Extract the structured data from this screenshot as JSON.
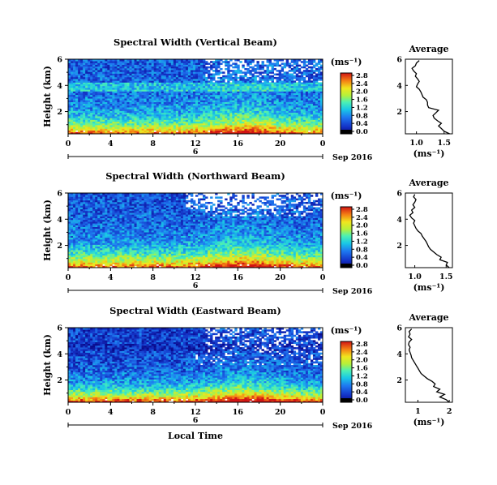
{
  "chart_data": [
    {
      "type": "heatmap",
      "title": "Spectral Width (Vertical Beam)",
      "ylabel": "Height (km)",
      "y_ticks": [
        "2",
        "4",
        "6"
      ],
      "ylim": [
        0.3,
        6.0
      ],
      "x_ticks": [
        "0",
        "4",
        "8",
        "12",
        "16",
        "20",
        "0"
      ],
      "xlim": [
        0,
        24
      ],
      "date_day": "6",
      "date_month": "Sep 2016",
      "colorbar": {
        "unit": "(ms⁻¹)",
        "ticks": [
          "0.0",
          "0.4",
          "0.8",
          "1.2",
          "1.6",
          "2.0",
          "2.4",
          "2.8"
        ],
        "range": [
          0,
          2.8
        ]
      },
      "average": {
        "title": "Average",
        "xlabel": "(ms⁻¹)",
        "x_ticks": [
          "1.0",
          "1.5"
        ],
        "x_tick_values": [
          1.0,
          1.5
        ],
        "xlim": [
          0.8,
          1.65
        ],
        "y_ticks": [
          "2",
          "4",
          "6"
        ],
        "ylim": [
          0.3,
          6.0
        ],
        "profile": [
          [
            0.3,
            1.6
          ],
          [
            0.5,
            1.5
          ],
          [
            0.7,
            1.45
          ],
          [
            0.9,
            1.4
          ],
          [
            1.1,
            1.45
          ],
          [
            1.3,
            1.38
          ],
          [
            1.5,
            1.32
          ],
          [
            1.7,
            1.3
          ],
          [
            1.9,
            1.35
          ],
          [
            2.1,
            1.4
          ],
          [
            2.3,
            1.22
          ],
          [
            2.5,
            1.2
          ],
          [
            2.7,
            1.2
          ],
          [
            2.9,
            1.18
          ],
          [
            3.1,
            1.12
          ],
          [
            3.3,
            1.1
          ],
          [
            3.5,
            1.08
          ],
          [
            3.7,
            1.05
          ],
          [
            3.9,
            1.0
          ],
          [
            4.1,
            1.02
          ],
          [
            4.3,
            1.05
          ],
          [
            4.5,
            1.02
          ],
          [
            4.7,
            0.98
          ],
          [
            4.9,
            1.0
          ],
          [
            5.1,
            0.95
          ],
          [
            5.3,
            0.92
          ],
          [
            5.5,
            0.98
          ],
          [
            5.7,
            1.0
          ],
          [
            5.9,
            1.05
          ]
        ]
      }
    },
    {
      "type": "heatmap",
      "title": "Spectral Width (Northward Beam)",
      "ylabel": "Height (km)",
      "y_ticks": [
        "2",
        "4",
        "6"
      ],
      "ylim": [
        0.3,
        6.0
      ],
      "x_ticks": [
        "0",
        "4",
        "8",
        "12",
        "16",
        "20",
        "0"
      ],
      "xlim": [
        0,
        24
      ],
      "date_day": "6",
      "date_month": "Sep 2016",
      "colorbar": {
        "unit": "(ms⁻¹)",
        "ticks": [
          "0.0",
          "0.4",
          "0.8",
          "1.2",
          "1.6",
          "2.0",
          "2.4",
          "2.8"
        ],
        "range": [
          0,
          2.8
        ]
      },
      "average": {
        "title": "Average",
        "xlabel": "(ms⁻¹)",
        "x_ticks": [
          "1.0",
          "1.5"
        ],
        "x_tick_values": [
          1.0,
          1.5
        ],
        "xlim": [
          0.85,
          1.6
        ],
        "y_ticks": [
          "2",
          "4",
          "6"
        ],
        "ylim": [
          0.3,
          6.0
        ],
        "profile": [
          [
            0.3,
            1.55
          ],
          [
            0.5,
            1.5
          ],
          [
            0.7,
            1.52
          ],
          [
            0.9,
            1.4
          ],
          [
            1.1,
            1.42
          ],
          [
            1.3,
            1.35
          ],
          [
            1.5,
            1.3
          ],
          [
            1.7,
            1.25
          ],
          [
            1.9,
            1.22
          ],
          [
            2.1,
            1.2
          ],
          [
            2.3,
            1.18
          ],
          [
            2.5,
            1.15
          ],
          [
            2.7,
            1.12
          ],
          [
            2.9,
            1.1
          ],
          [
            3.1,
            1.05
          ],
          [
            3.3,
            1.02
          ],
          [
            3.5,
            1.0
          ],
          [
            3.7,
            0.98
          ],
          [
            3.9,
            1.0
          ],
          [
            4.1,
            0.95
          ],
          [
            4.3,
            0.92
          ],
          [
            4.5,
            0.97
          ],
          [
            4.7,
            0.95
          ],
          [
            4.9,
            1.0
          ],
          [
            5.1,
            0.97
          ],
          [
            5.3,
            1.0
          ],
          [
            5.5,
            1.02
          ],
          [
            5.7,
            0.98
          ],
          [
            5.9,
            1.0
          ]
        ]
      }
    },
    {
      "type": "heatmap",
      "title": "Spectral Width (Eastward Beam)",
      "ylabel": "Height (km)",
      "y_ticks": [
        "2",
        "4",
        "6"
      ],
      "ylim": [
        0.3,
        6.0
      ],
      "x_ticks": [
        "0",
        "4",
        "8",
        "12",
        "16",
        "20",
        "0"
      ],
      "xlim": [
        0,
        24
      ],
      "date_day": "6",
      "date_month": "Sep 2016",
      "xlabel": "Local Time",
      "colorbar": {
        "unit": "(ms⁻¹)",
        "ticks": [
          "0.0",
          "0.4",
          "0.8",
          "1.2",
          "1.6",
          "2.0",
          "2.4",
          "2.8"
        ],
        "range": [
          0,
          2.8
        ]
      },
      "average": {
        "title": "Average",
        "xlabel": "(ms⁻¹)",
        "x_ticks": [
          "1",
          "2"
        ],
        "x_tick_values": [
          1.0,
          2.0
        ],
        "xlim": [
          0.6,
          2.1
        ],
        "y_ticks": [
          "2",
          "4",
          "6"
        ],
        "ylim": [
          0.3,
          6.0
        ],
        "profile": [
          [
            0.3,
            2.0
          ],
          [
            0.5,
            1.9
          ],
          [
            0.7,
            1.7
          ],
          [
            0.9,
            1.85
          ],
          [
            1.1,
            1.6
          ],
          [
            1.3,
            1.7
          ],
          [
            1.5,
            1.5
          ],
          [
            1.7,
            1.55
          ],
          [
            1.9,
            1.45
          ],
          [
            2.1,
            1.3
          ],
          [
            2.3,
            1.2
          ],
          [
            2.5,
            1.1
          ],
          [
            2.7,
            1.05
          ],
          [
            2.9,
            1.0
          ],
          [
            3.1,
            0.95
          ],
          [
            3.3,
            0.9
          ],
          [
            3.5,
            0.85
          ],
          [
            3.7,
            0.8
          ],
          [
            3.9,
            0.78
          ],
          [
            4.1,
            0.75
          ],
          [
            4.3,
            0.72
          ],
          [
            4.5,
            0.75
          ],
          [
            4.7,
            0.7
          ],
          [
            4.9,
            0.72
          ],
          [
            5.1,
            0.8
          ],
          [
            5.3,
            0.7
          ],
          [
            5.5,
            0.75
          ],
          [
            5.7,
            0.72
          ],
          [
            5.9,
            0.8
          ]
        ]
      }
    }
  ]
}
